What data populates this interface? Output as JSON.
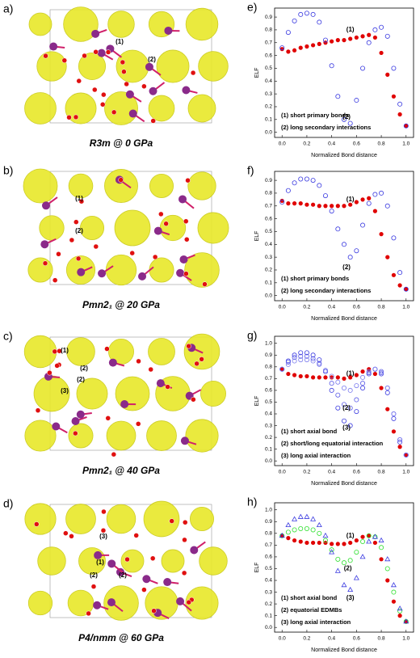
{
  "structures": [
    {
      "letter": "a)",
      "caption": "R3m @ 0 GPa",
      "labels": [
        "(1)",
        "(2)"
      ]
    },
    {
      "letter": "b)",
      "caption": "Pmn2₁ @ 20 GPa",
      "labels": [
        "(1)",
        "(2)"
      ]
    },
    {
      "letter": "c)",
      "caption": "Pmn2₁ @ 40 GPa",
      "labels": [
        "(1)",
        "(2)",
        "(2)",
        "(3)"
      ]
    },
    {
      "letter": "d)",
      "caption": "P4/nmm @ 60 GPa",
      "labels": [
        "(3)",
        "(1)",
        "(2)",
        "(2)"
      ]
    }
  ],
  "chart_data": [
    {
      "type": "scatter",
      "letter": "e)",
      "ylabel": "ELF",
      "xlabel": "Normalized Bond distance",
      "x": [
        0,
        0.05,
        0.1,
        0.15,
        0.2,
        0.25,
        0.3,
        0.35,
        0.4,
        0.45,
        0.5,
        0.55,
        0.6,
        0.65,
        0.7,
        0.75,
        0.8,
        0.85,
        0.9,
        0.95,
        1.0
      ],
      "series": [
        {
          "color": "#e00000",
          "marker": "filled-circle",
          "values": [
            0.65,
            0.63,
            0.64,
            0.66,
            0.67,
            0.68,
            0.69,
            0.7,
            0.71,
            0.72,
            0.72,
            0.73,
            0.74,
            0.75,
            0.76,
            0.74,
            0.62,
            0.45,
            0.28,
            0.14,
            0.05
          ]
        },
        {
          "color": "#3a3ae0",
          "marker": "open-circle",
          "values": [
            0.66,
            0.78,
            0.87,
            0.92,
            0.93,
            0.92,
            0.86,
            0.72,
            0.52,
            0.28,
            0.1,
            0.07,
            0.25,
            0.5,
            0.7,
            0.8,
            0.82,
            0.75,
            0.5,
            0.22,
            0.05
          ]
        }
      ],
      "annotations": [
        "(1)",
        "(2)"
      ],
      "notes": [
        "(1) short primary bonds",
        "(2) long secondary interactions"
      ],
      "xlim": [
        -0.06,
        1.06
      ],
      "ylim": [
        -0.04,
        0.97
      ],
      "xticks": [
        {
          "value": 0,
          "label": "0.0"
        },
        {
          "value": 0.2,
          "label": "0.2"
        },
        {
          "value": 0.4,
          "label": "0.4"
        },
        {
          "value": 0.6,
          "label": "0.6"
        },
        {
          "value": 0.8,
          "label": "0.8"
        },
        {
          "value": 1,
          "label": "1.0"
        }
      ],
      "yticks": [
        {
          "value": 0,
          "label": "0.0"
        },
        0.1,
        0.2,
        0.3,
        0.4,
        0.5,
        0.6,
        0.7,
        0.8,
        0.9
      ]
    },
    {
      "type": "scatter",
      "letter": "f)",
      "ylabel": "ELF",
      "xlabel": "Normalized Bond distance",
      "x": [
        0,
        0.05,
        0.1,
        0.15,
        0.2,
        0.25,
        0.3,
        0.35,
        0.4,
        0.45,
        0.5,
        0.55,
        0.6,
        0.65,
        0.7,
        0.75,
        0.8,
        0.85,
        0.9,
        0.95,
        1.0
      ],
      "series": [
        {
          "color": "#e00000",
          "marker": "filled-circle",
          "values": [
            0.74,
            0.72,
            0.72,
            0.72,
            0.71,
            0.71,
            0.7,
            0.7,
            0.7,
            0.7,
            0.7,
            0.71,
            0.73,
            0.75,
            0.76,
            0.66,
            0.48,
            0.3,
            0.16,
            0.08,
            0.05
          ]
        },
        {
          "color": "#3a3ae0",
          "marker": "open-circle",
          "values": [
            0.73,
            0.82,
            0.88,
            0.91,
            0.91,
            0.9,
            0.86,
            0.78,
            0.66,
            0.52,
            0.4,
            0.3,
            0.35,
            0.55,
            0.72,
            0.79,
            0.8,
            0.7,
            0.45,
            0.18,
            0.05
          ]
        }
      ],
      "annotations": [
        "(1)",
        "(2)"
      ],
      "notes": [
        "(1) short primary bonds",
        "(2) long secondary interactions"
      ],
      "xlim": [
        -0.06,
        1.06
      ],
      "ylim": [
        -0.04,
        0.97
      ],
      "xticks": [
        {
          "value": 0,
          "label": "0.0"
        },
        {
          "value": 0.2,
          "label": "0.2"
        },
        {
          "value": 0.4,
          "label": "0.4"
        },
        {
          "value": 0.6,
          "label": "0.6"
        },
        {
          "value": 0.8,
          "label": "0.8"
        },
        {
          "value": 1,
          "label": "1.0"
        }
      ],
      "yticks": [
        {
          "value": 0,
          "label": "0.0"
        },
        0.1,
        0.2,
        0.3,
        0.4,
        0.5,
        0.6,
        0.7,
        0.8,
        0.9
      ]
    },
    {
      "type": "scatter",
      "letter": "g)",
      "ylabel": "ELF",
      "xlabel": "Normalized Bond distance",
      "x": [
        0,
        0.05,
        0.1,
        0.15,
        0.2,
        0.25,
        0.3,
        0.35,
        0.4,
        0.45,
        0.5,
        0.55,
        0.6,
        0.65,
        0.7,
        0.75,
        0.8,
        0.85,
        0.9,
        0.95,
        1.0
      ],
      "series": [
        {
          "color": "#e00000",
          "marker": "filled-circle",
          "values": [
            0.78,
            0.74,
            0.73,
            0.72,
            0.72,
            0.71,
            0.71,
            0.71,
            0.71,
            0.71,
            0.7,
            0.71,
            0.73,
            0.76,
            0.78,
            0.74,
            0.62,
            0.44,
            0.25,
            0.12,
            0.05
          ]
        },
        {
          "color": "#3a3ae0",
          "marker": "open-circle",
          "values": [
            0.78,
            0.85,
            0.9,
            0.92,
            0.92,
            0.9,
            0.86,
            0.76,
            0.6,
            0.45,
            0.34,
            0.3,
            0.42,
            0.62,
            0.74,
            0.78,
            0.74,
            0.58,
            0.36,
            0.16,
            0.05
          ]
        },
        {
          "color": "#5a5ae6",
          "marker": "open-circle",
          "values": [
            0.78,
            0.84,
            0.88,
            0.89,
            0.89,
            0.87,
            0.83,
            0.76,
            0.66,
            0.56,
            0.48,
            0.45,
            0.52,
            0.66,
            0.75,
            0.78,
            0.76,
            0.62,
            0.4,
            0.18,
            0.05
          ]
        },
        {
          "color": "#7a7aee",
          "marker": "open-circle",
          "values": [
            0.78,
            0.82,
            0.85,
            0.86,
            0.86,
            0.85,
            0.82,
            0.77,
            0.72,
            0.67,
            0.62,
            0.6,
            0.64,
            0.71,
            0.76,
            0.78,
            0.75,
            0.62,
            0.4,
            0.18,
            0.05
          ]
        }
      ],
      "annotations": [
        "(1)",
        "(2)",
        "(3)"
      ],
      "notes": [
        "(1) short axial bond",
        "(2) short/long equatorial interaction",
        "(3) long axial interaction"
      ],
      "xlim": [
        -0.06,
        1.06
      ],
      "ylim": [
        -0.04,
        1.06
      ],
      "xticks": [
        {
          "value": 0,
          "label": "0.0"
        },
        {
          "value": 0.2,
          "label": "0.2"
        },
        {
          "value": 0.4,
          "label": "0.4"
        },
        {
          "value": 0.6,
          "label": "0.6"
        },
        {
          "value": 0.8,
          "label": "0.8"
        },
        {
          "value": 1,
          "label": "1.0"
        }
      ],
      "yticks": [
        {
          "value": 0,
          "label": "0.0"
        },
        0.1,
        0.2,
        0.3,
        0.4,
        0.5,
        0.6,
        0.7,
        0.8,
        0.9,
        {
          "value": 1,
          "label": "1.0"
        }
      ]
    },
    {
      "type": "scatter",
      "letter": "h)",
      "ylabel": "ELF",
      "xlabel": "Normalized Bond distance",
      "x": [
        0,
        0.05,
        0.1,
        0.15,
        0.2,
        0.25,
        0.3,
        0.35,
        0.4,
        0.45,
        0.5,
        0.55,
        0.6,
        0.65,
        0.7,
        0.75,
        0.8,
        0.85,
        0.9,
        0.95,
        1.0
      ],
      "series": [
        {
          "color": "#e00000",
          "marker": "filled-circle",
          "values": [
            0.78,
            0.76,
            0.74,
            0.73,
            0.72,
            0.72,
            0.72,
            0.72,
            0.71,
            0.71,
            0.71,
            0.72,
            0.74,
            0.77,
            0.78,
            0.72,
            0.58,
            0.4,
            0.22,
            0.1,
            0.05
          ]
        },
        {
          "color": "#2ee02e",
          "marker": "open-circle",
          "values": [
            0.78,
            0.81,
            0.83,
            0.84,
            0.84,
            0.83,
            0.8,
            0.74,
            0.66,
            0.58,
            0.55,
            0.57,
            0.64,
            0.73,
            0.78,
            0.77,
            0.68,
            0.5,
            0.3,
            0.14,
            0.05
          ]
        },
        {
          "color": "#3a3ae0",
          "marker": "open-triangle",
          "values": [
            0.78,
            0.87,
            0.92,
            0.94,
            0.94,
            0.92,
            0.87,
            0.78,
            0.64,
            0.48,
            0.36,
            0.32,
            0.42,
            0.6,
            0.73,
            0.77,
            0.74,
            0.58,
            0.36,
            0.16,
            0.05
          ]
        }
      ],
      "annotations": [
        "(1)",
        "(2)",
        "(3)"
      ],
      "notes": [
        "(1) short axial bond",
        "(2) equatorial EDMBs",
        "(3) long axial interaction"
      ],
      "xlim": [
        -0.06,
        1.06
      ],
      "ylim": [
        -0.04,
        1.06
      ],
      "xticks": [
        {
          "value": 0,
          "label": "0.0"
        },
        {
          "value": 0.2,
          "label": "0.2"
        },
        {
          "value": 0.4,
          "label": "0.4"
        },
        {
          "value": 0.6,
          "label": "0.6"
        },
        {
          "value": 0.8,
          "label": "0.8"
        },
        {
          "value": 1,
          "label": "1.0"
        }
      ],
      "yticks": [
        {
          "value": 0,
          "label": "0.0"
        },
        0.1,
        0.2,
        0.3,
        0.4,
        0.5,
        0.6,
        0.7,
        0.8,
        0.9,
        {
          "value": 1,
          "label": "1.0"
        }
      ]
    }
  ]
}
